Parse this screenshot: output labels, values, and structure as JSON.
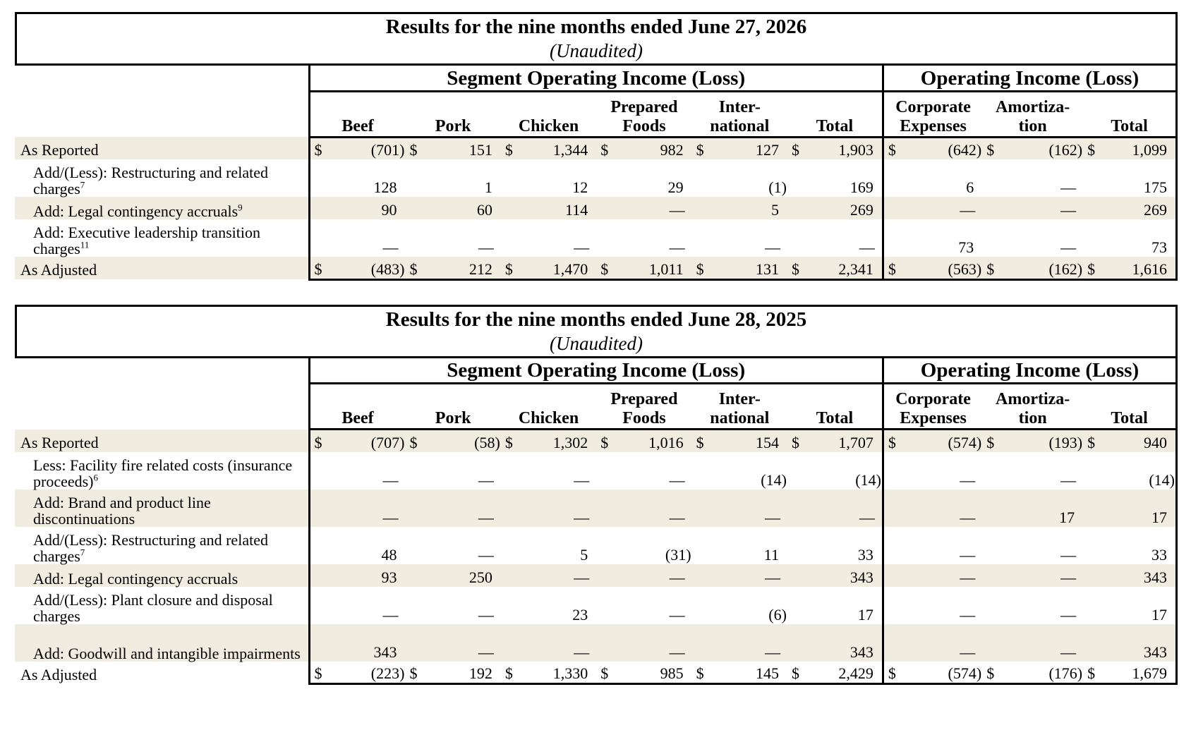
{
  "tables": [
    {
      "title": "Results for the nine months ended June 27, 2026",
      "subtitle": "(Unaudited)",
      "group_segment": "Segment Operating Income (Loss)",
      "group_operating": "Operating Income (Loss)",
      "columns": [
        "Beef",
        "Pork",
        "Chicken",
        "Prepared Foods",
        "International",
        "Total",
        "Corporate Expenses",
        "Amortization",
        "Total"
      ],
      "rows": [
        {
          "label": "As Reported",
          "sup": "",
          "type": "total",
          "shade": true,
          "values": [
            "(701)",
            "151",
            "1,344",
            "982",
            "127",
            "1,903",
            "(642)",
            "(162)",
            "1,099"
          ]
        },
        {
          "label": "Add/(Less): Restructuring and related charges",
          "sup": "7",
          "type": "sub",
          "shade": false,
          "values": [
            "128",
            "1",
            "12",
            "29",
            "(1)",
            "169",
            "6",
            "—",
            "175"
          ]
        },
        {
          "label": "Add: Legal contingency accruals",
          "sup": "9",
          "type": "sub1",
          "shade": true,
          "values": [
            "90",
            "60",
            "114",
            "—",
            "5",
            "269",
            "—",
            "—",
            "269"
          ]
        },
        {
          "label": "Add: Executive leadership transition charges",
          "sup": "11",
          "type": "sub",
          "shade": false,
          "values": [
            "—",
            "—",
            "—",
            "—",
            "—",
            "—",
            "73",
            "—",
            "73"
          ]
        },
        {
          "label": "As Adjusted",
          "sup": "",
          "type": "total",
          "shade": true,
          "values": [
            "(483)",
            "212",
            "1,470",
            "1,011",
            "131",
            "2,341",
            "(563)",
            "(162)",
            "1,616"
          ]
        }
      ]
    },
    {
      "title": "Results for the nine months ended June 28, 2025",
      "subtitle": "(Unaudited)",
      "group_segment": "Segment Operating Income (Loss)",
      "group_operating": "Operating Income (Loss)",
      "columns": [
        "Beef",
        "Pork",
        "Chicken",
        "Prepared Foods",
        "International",
        "Total",
        "Corporate Expenses",
        "Amortization",
        "Total"
      ],
      "rows": [
        {
          "label": "As Reported",
          "sup": "",
          "type": "total",
          "shade": true,
          "values": [
            "(707)",
            "(58)",
            "1,302",
            "1,016",
            "154",
            "1,707",
            "(574)",
            "(193)",
            "940"
          ]
        },
        {
          "label": "Less: Facility fire related costs (insurance proceeds)",
          "sup": "6",
          "type": "sub",
          "shade": false,
          "values": [
            "—",
            "—",
            "—",
            "—",
            "(14)",
            "(14)",
            "—",
            "—",
            "(14)"
          ]
        },
        {
          "label": "Add: Brand and product line discontinuations",
          "sup": "",
          "type": "sub",
          "shade": true,
          "values": [
            "—",
            "—",
            "—",
            "—",
            "—",
            "—",
            "—",
            "17",
            "17"
          ]
        },
        {
          "label": "Add/(Less): Restructuring and related charges",
          "sup": "7",
          "type": "sub",
          "shade": false,
          "values": [
            "48",
            "—",
            "5",
            "(31)",
            "11",
            "33",
            "—",
            "—",
            "33"
          ]
        },
        {
          "label": "Add: Legal contingency accruals",
          "sup": "",
          "type": "sub1",
          "shade": true,
          "values": [
            "93",
            "250",
            "—",
            "—",
            "—",
            "343",
            "—",
            "—",
            "343"
          ]
        },
        {
          "label": "Add/(Less): Plant closure and disposal charges",
          "sup": "",
          "type": "sub",
          "shade": false,
          "values": [
            "—",
            "—",
            "23",
            "—",
            "(6)",
            "17",
            "—",
            "—",
            "17"
          ]
        },
        {
          "label": "Add: Goodwill and intangible impairments",
          "sup": "",
          "type": "sub",
          "shade": true,
          "values": [
            "343",
            "—",
            "—",
            "—",
            "—",
            "343",
            "—",
            "—",
            "343"
          ]
        },
        {
          "label": "As Adjusted",
          "sup": "",
          "type": "total",
          "shade": false,
          "values": [
            "(223)",
            "192",
            "1,330",
            "985",
            "145",
            "2,429",
            "(574)",
            "(176)",
            "1,679"
          ]
        }
      ]
    }
  ],
  "currency_symbol": "$",
  "header_labels": {
    "beef": "Beef",
    "pork": "Pork",
    "chicken": "Chicken",
    "prepared_1": "Prepared",
    "prepared_2": "Foods",
    "intl_1": "Inter-",
    "intl_2": "national",
    "total": "Total",
    "corp_1": "Corporate",
    "corp_2": "Expenses",
    "amort_1": "Amortiza-",
    "amort_2": "tion"
  }
}
